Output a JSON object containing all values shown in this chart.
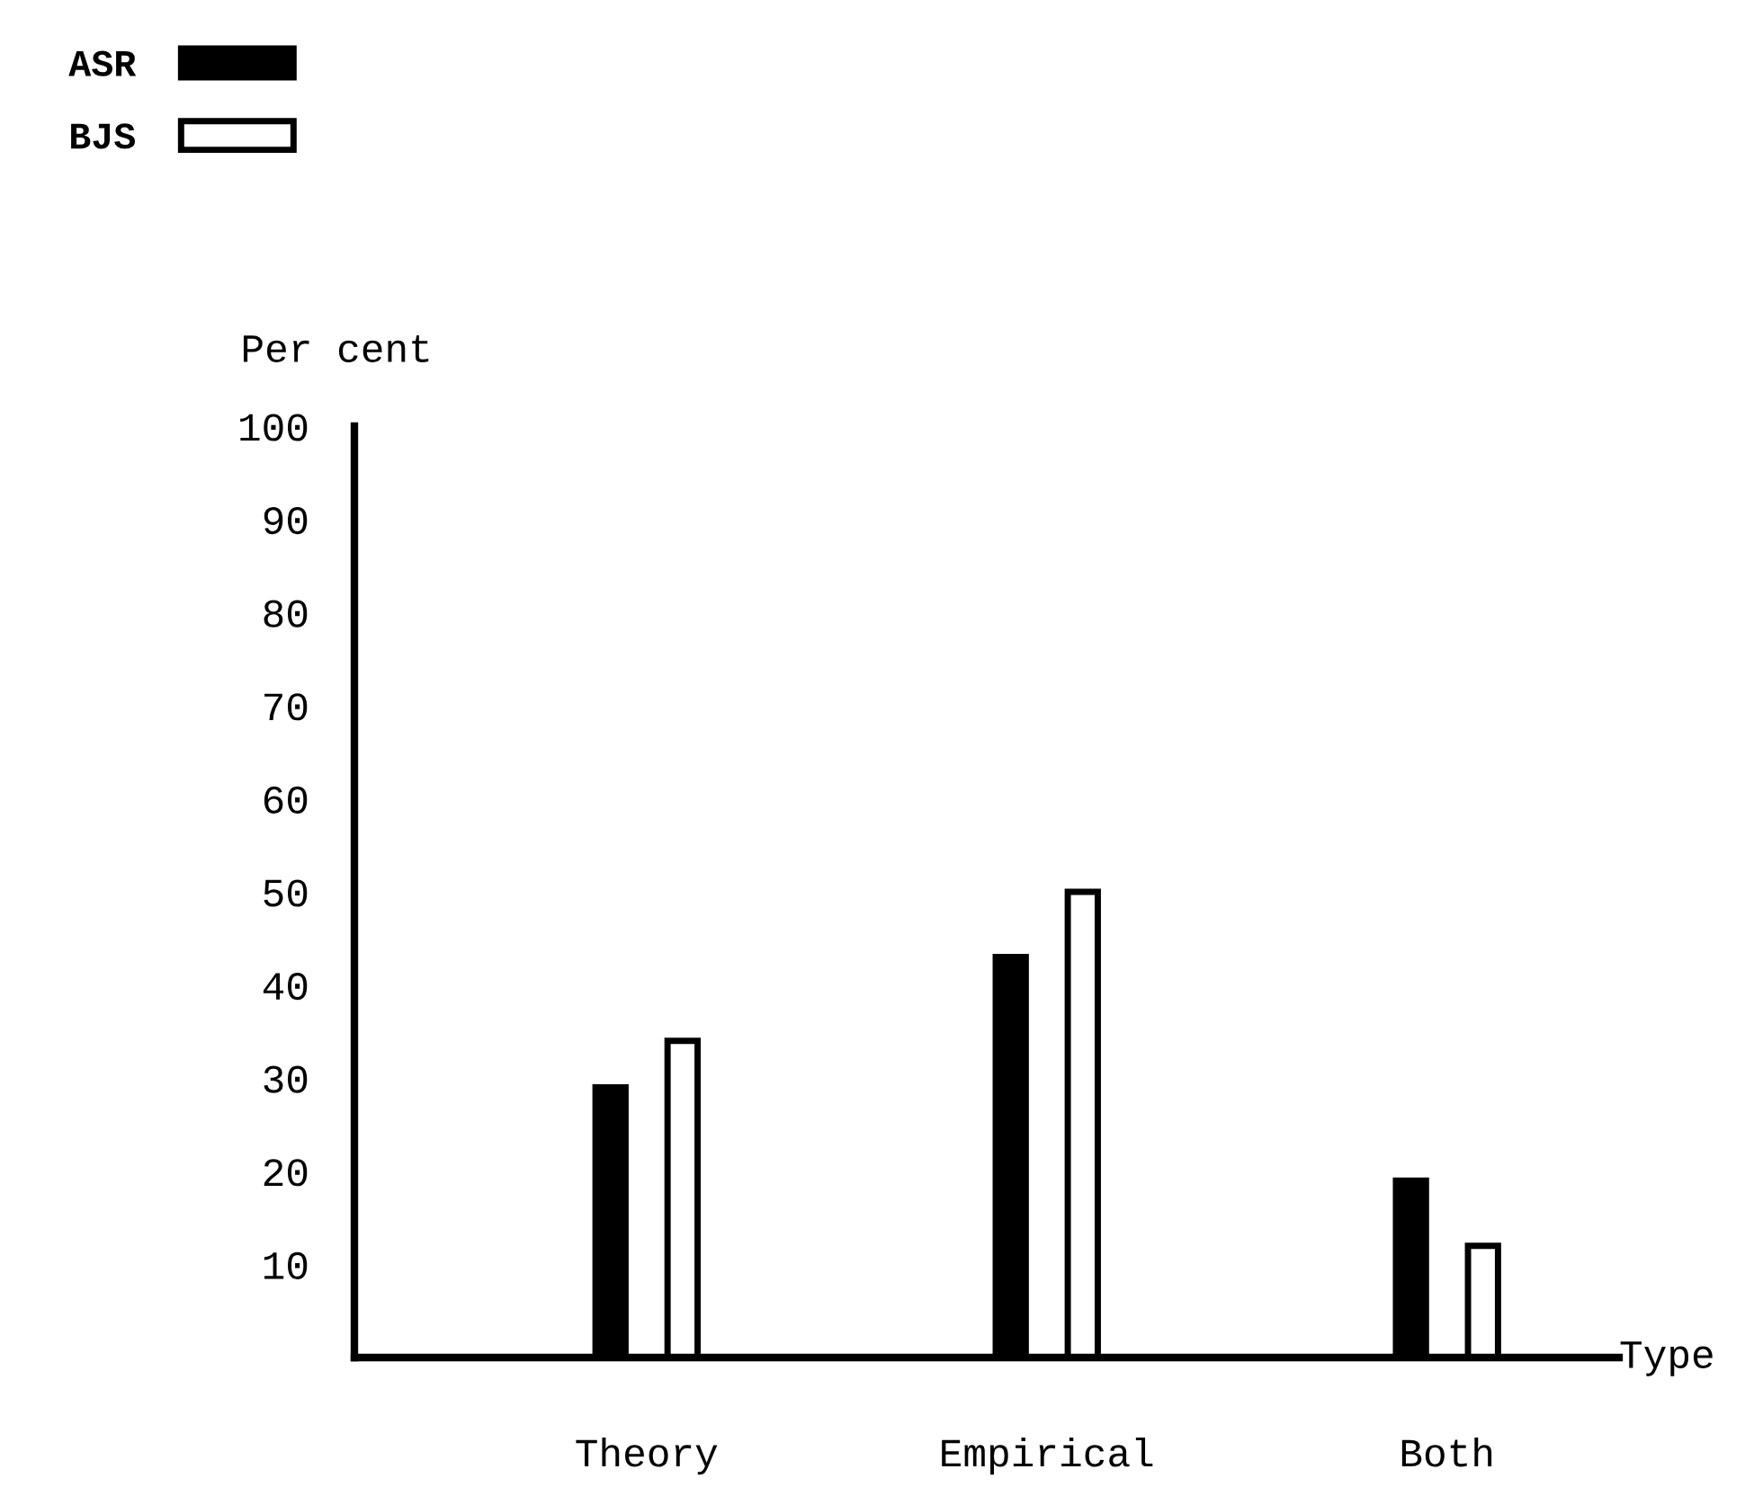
{
  "chart_data": {
    "type": "bar",
    "xlabel": "Type",
    "ylabel": "Per cent",
    "categories": [
      "Theory",
      "Empirical",
      "Both"
    ],
    "series": [
      {
        "name": "ASR",
        "color": "#000000",
        "values": [
          29,
          43,
          19
        ]
      },
      {
        "name": "BJS",
        "color": "#ffffff",
        "values": [
          34,
          50,
          12
        ]
      }
    ],
    "ylim": [
      0,
      100
    ],
    "yticks": [
      10,
      20,
      30,
      40,
      50,
      60,
      70,
      80,
      90,
      100
    ],
    "grid": false,
    "legend": "top left"
  }
}
